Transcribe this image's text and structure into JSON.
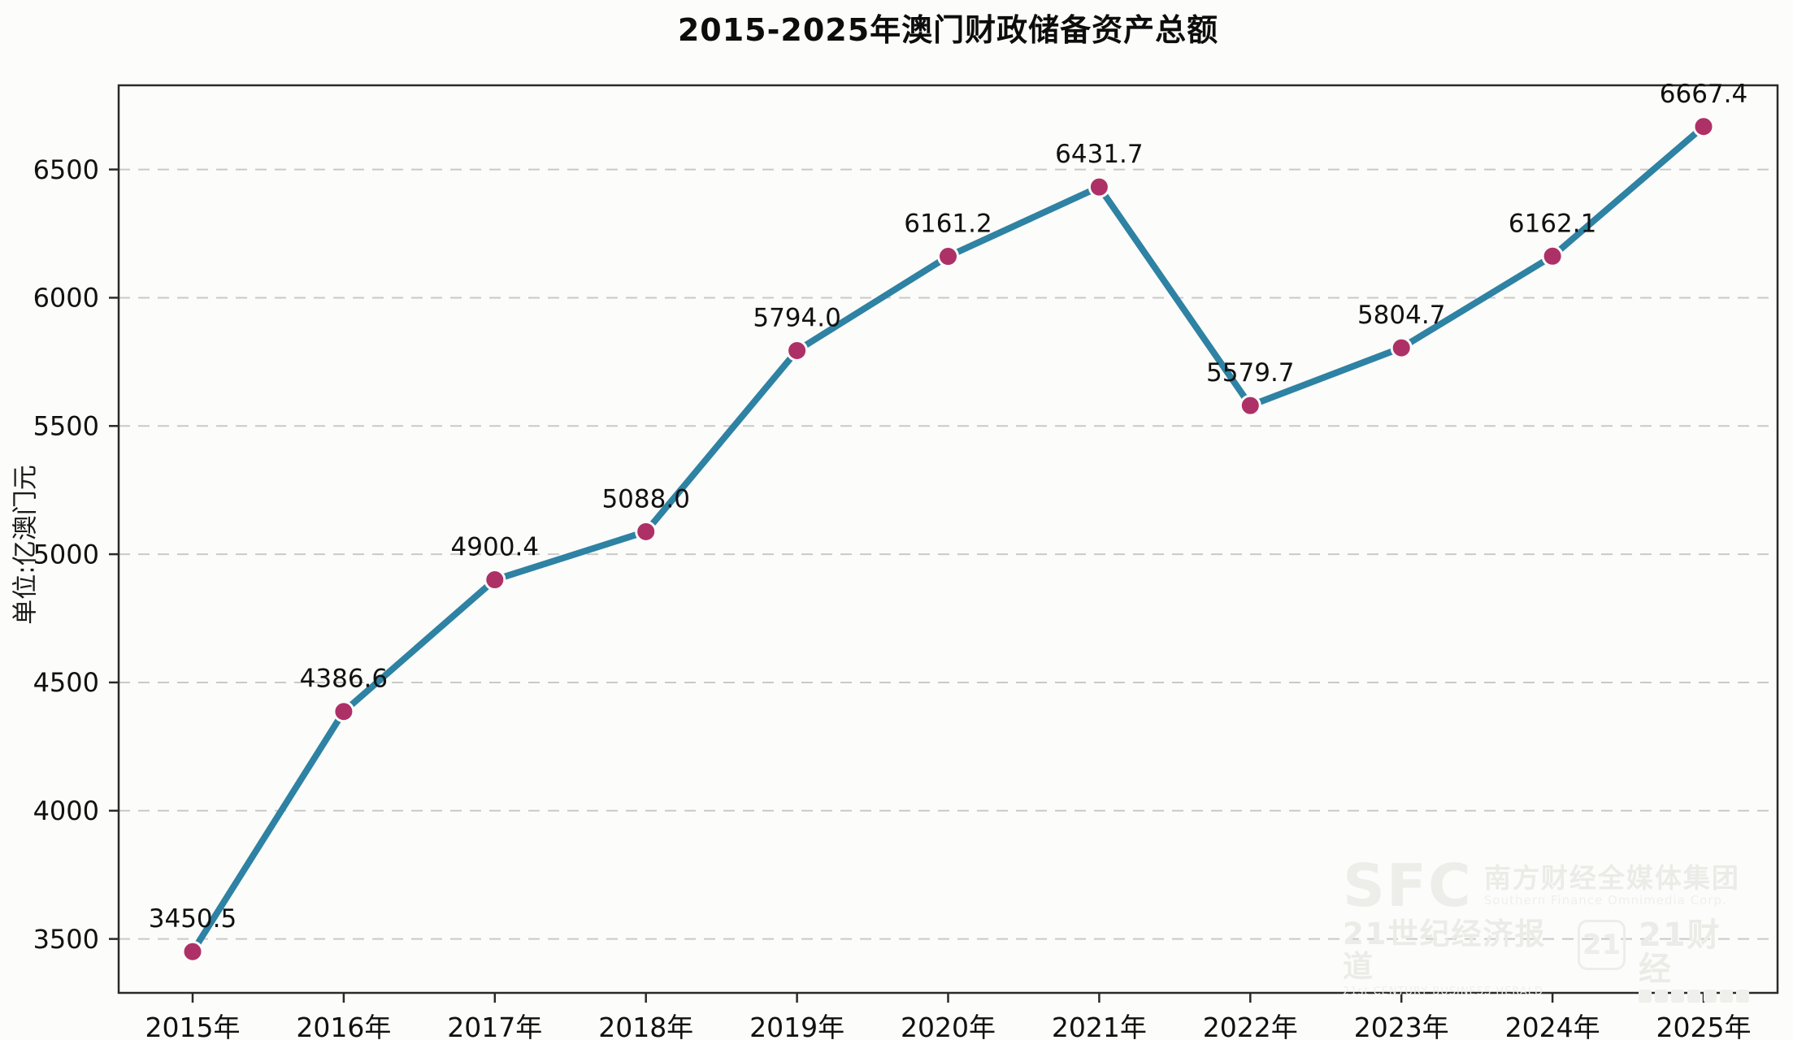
{
  "chart_data": {
    "type": "line",
    "title": "2015-2025年澳门财政储备资产总额",
    "xlabel": "",
    "ylabel": "单位:亿澳门元",
    "categories": [
      "2015年",
      "2016年",
      "2017年",
      "2018年",
      "2019年",
      "2020年",
      "2021年",
      "2022年",
      "2023年",
      "2024年",
      "2025年"
    ],
    "values": [
      3450.5,
      4386.6,
      4900.4,
      5088.0,
      5794.0,
      6161.2,
      6431.7,
      5579.7,
      5804.7,
      6162.1,
      6667.4
    ],
    "point_labels": [
      "3450.5",
      "4386.6",
      "4900.4",
      "5088.0",
      "5794.0",
      "6161.2",
      "6431.7",
      "5579.7",
      "5804.7",
      "6162.1",
      "6667.4"
    ],
    "yticks": [
      3500,
      4000,
      4500,
      5000,
      5500,
      6000,
      6500
    ],
    "ylim": [
      3289.7,
      6828.2
    ],
    "grid": "horizontal dashed",
    "legend_position": "none",
    "line_color": "#2e82a3",
    "marker_color": "#ad3166",
    "grid_color": "#c9c9c9",
    "axis_color": "#2a2a2a",
    "label_color": "#111111"
  },
  "watermark": {
    "sfc_logo": "SFC",
    "org_cn": "南方财经全媒体集团",
    "org_en": "Southern Finance Omnimedia Corp.",
    "herald_cn": "21世纪经济报道",
    "herald_en": "21st CENTURY BUSINESS HERALD",
    "logo21": "21",
    "cj_cn": "21财经"
  }
}
